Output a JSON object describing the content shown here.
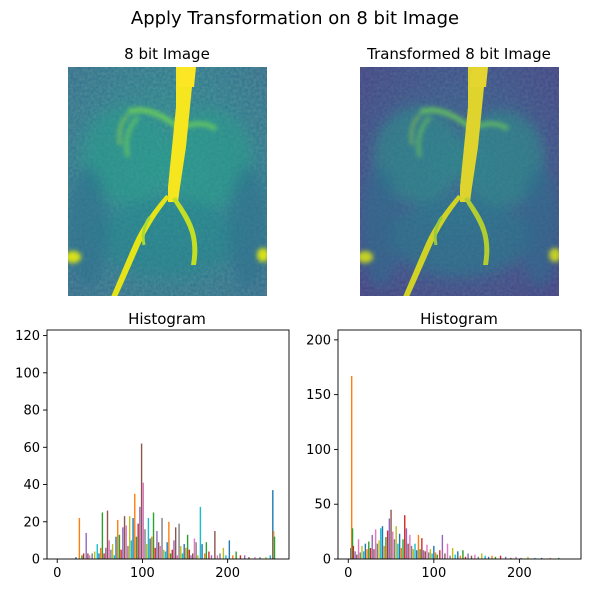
{
  "figure": {
    "title": "Apply Transformation on 8 bit Image"
  },
  "images": [
    {
      "title": "8 bit Image",
      "colormap": "viridis",
      "transformed": false
    },
    {
      "title": "Transformed 8 bit Image",
      "colormap": "viridis",
      "transformed": true
    }
  ],
  "series_colors": [
    "#1f77b4",
    "#ff7f0e",
    "#2ca02c",
    "#d62728",
    "#9467bd",
    "#8c564b",
    "#e377c2",
    "#7f7f7f",
    "#bcbd22",
    "#17becf"
  ],
  "chart_data": [
    {
      "type": "bar",
      "title": "Histogram",
      "xlabel": "",
      "ylabel": "",
      "xlim": [
        -12,
        272
      ],
      "ylim": [
        0,
        123
      ],
      "xticks": [
        0,
        100,
        200
      ],
      "yticks": [
        0,
        20,
        40,
        60,
        80,
        100,
        120
      ],
      "bins": [
        {
          "x": 22,
          "y": 1
        },
        {
          "x": 26,
          "y": 22
        },
        {
          "x": 29,
          "y": 2
        },
        {
          "x": 31,
          "y": 3
        },
        {
          "x": 34,
          "y": 14
        },
        {
          "x": 36,
          "y": 3
        },
        {
          "x": 38,
          "y": 2
        },
        {
          "x": 41,
          "y": 3
        },
        {
          "x": 44,
          "y": 4
        },
        {
          "x": 47,
          "y": 8
        },
        {
          "x": 49,
          "y": 3
        },
        {
          "x": 51,
          "y": 6
        },
        {
          "x": 53,
          "y": 25
        },
        {
          "x": 55,
          "y": 3
        },
        {
          "x": 57,
          "y": 6
        },
        {
          "x": 59,
          "y": 26
        },
        {
          "x": 61,
          "y": 10
        },
        {
          "x": 63,
          "y": 5
        },
        {
          "x": 65,
          "y": 8
        },
        {
          "x": 67,
          "y": 2
        },
        {
          "x": 69,
          "y": 12
        },
        {
          "x": 71,
          "y": 21
        },
        {
          "x": 73,
          "y": 13
        },
        {
          "x": 75,
          "y": 5
        },
        {
          "x": 77,
          "y": 17
        },
        {
          "x": 79,
          "y": 23
        },
        {
          "x": 81,
          "y": 18
        },
        {
          "x": 83,
          "y": 7
        },
        {
          "x": 85,
          "y": 23
        },
        {
          "x": 87,
          "y": 10
        },
        {
          "x": 89,
          "y": 22
        },
        {
          "x": 91,
          "y": 35
        },
        {
          "x": 93,
          "y": 12
        },
        {
          "x": 95,
          "y": 19
        },
        {
          "x": 97,
          "y": 28
        },
        {
          "x": 99,
          "y": 62
        },
        {
          "x": 101,
          "y": 41
        },
        {
          "x": 103,
          "y": 16
        },
        {
          "x": 105,
          "y": 8
        },
        {
          "x": 107,
          "y": 22
        },
        {
          "x": 109,
          "y": 11
        },
        {
          "x": 111,
          "y": 12
        },
        {
          "x": 113,
          "y": 25
        },
        {
          "x": 115,
          "y": 6
        },
        {
          "x": 117,
          "y": 15
        },
        {
          "x": 119,
          "y": 9
        },
        {
          "x": 121,
          "y": 7
        },
        {
          "x": 123,
          "y": 22
        },
        {
          "x": 125,
          "y": 5
        },
        {
          "x": 127,
          "y": 4
        },
        {
          "x": 129,
          "y": 9
        },
        {
          "x": 131,
          "y": 20
        },
        {
          "x": 133,
          "y": 3
        },
        {
          "x": 135,
          "y": 5
        },
        {
          "x": 137,
          "y": 10
        },
        {
          "x": 139,
          "y": 17
        },
        {
          "x": 141,
          "y": 2
        },
        {
          "x": 143,
          "y": 19
        },
        {
          "x": 145,
          "y": 7
        },
        {
          "x": 147,
          "y": 3
        },
        {
          "x": 149,
          "y": 8
        },
        {
          "x": 151,
          "y": 6
        },
        {
          "x": 153,
          "y": 13
        },
        {
          "x": 155,
          "y": 5
        },
        {
          "x": 157,
          "y": 2
        },
        {
          "x": 159,
          "y": 3
        },
        {
          "x": 161,
          "y": 11
        },
        {
          "x": 163,
          "y": 9
        },
        {
          "x": 165,
          "y": 2
        },
        {
          "x": 168,
          "y": 28
        },
        {
          "x": 170,
          "y": 8
        },
        {
          "x": 173,
          "y": 3
        },
        {
          "x": 175,
          "y": 9
        },
        {
          "x": 178,
          "y": 4
        },
        {
          "x": 181,
          "y": 2
        },
        {
          "x": 185,
          "y": 15
        },
        {
          "x": 188,
          "y": 2
        },
        {
          "x": 191,
          "y": 3
        },
        {
          "x": 195,
          "y": 6
        },
        {
          "x": 198,
          "y": 2
        },
        {
          "x": 202,
          "y": 10
        },
        {
          "x": 206,
          "y": 2
        },
        {
          "x": 210,
          "y": 4
        },
        {
          "x": 215,
          "y": 2
        },
        {
          "x": 220,
          "y": 2
        },
        {
          "x": 225,
          "y": 1
        },
        {
          "x": 232,
          "y": 1
        },
        {
          "x": 238,
          "y": 1
        },
        {
          "x": 245,
          "y": 1
        },
        {
          "x": 250,
          "y": 2
        },
        {
          "x": 253,
          "y": 37
        },
        {
          "x": 254,
          "y": 15
        },
        {
          "x": 255,
          "y": 12
        }
      ]
    },
    {
      "type": "bar",
      "title": "Histogram",
      "xlabel": "",
      "ylabel": "",
      "xlim": [
        -12,
        272
      ],
      "ylim": [
        0,
        209
      ],
      "xticks": [
        0,
        100,
        200
      ],
      "yticks": [
        0,
        50,
        100,
        150,
        200
      ],
      "bins": [
        {
          "x": 3,
          "y": 10
        },
        {
          "x": 4,
          "y": 167
        },
        {
          "x": 5,
          "y": 28
        },
        {
          "x": 6,
          "y": 12
        },
        {
          "x": 8,
          "y": 7
        },
        {
          "x": 10,
          "y": 4
        },
        {
          "x": 12,
          "y": 18
        },
        {
          "x": 14,
          "y": 6
        },
        {
          "x": 16,
          "y": 12
        },
        {
          "x": 18,
          "y": 7
        },
        {
          "x": 20,
          "y": 14
        },
        {
          "x": 22,
          "y": 9
        },
        {
          "x": 24,
          "y": 16
        },
        {
          "x": 26,
          "y": 10
        },
        {
          "x": 28,
          "y": 22
        },
        {
          "x": 30,
          "y": 9
        },
        {
          "x": 32,
          "y": 27
        },
        {
          "x": 34,
          "y": 14
        },
        {
          "x": 36,
          "y": 17
        },
        {
          "x": 38,
          "y": 28
        },
        {
          "x": 40,
          "y": 30
        },
        {
          "x": 42,
          "y": 12
        },
        {
          "x": 44,
          "y": 20
        },
        {
          "x": 46,
          "y": 26
        },
        {
          "x": 48,
          "y": 37
        },
        {
          "x": 50,
          "y": 45
        },
        {
          "x": 52,
          "y": 25
        },
        {
          "x": 54,
          "y": 18
        },
        {
          "x": 56,
          "y": 30
        },
        {
          "x": 58,
          "y": 14
        },
        {
          "x": 60,
          "y": 23
        },
        {
          "x": 62,
          "y": 10
        },
        {
          "x": 64,
          "y": 18
        },
        {
          "x": 66,
          "y": 40
        },
        {
          "x": 68,
          "y": 28
        },
        {
          "x": 70,
          "y": 14
        },
        {
          "x": 72,
          "y": 22
        },
        {
          "x": 74,
          "y": 12
        },
        {
          "x": 76,
          "y": 9
        },
        {
          "x": 78,
          "y": 14
        },
        {
          "x": 80,
          "y": 8
        },
        {
          "x": 82,
          "y": 22
        },
        {
          "x": 84,
          "y": 9
        },
        {
          "x": 86,
          "y": 19
        },
        {
          "x": 88,
          "y": 8
        },
        {
          "x": 90,
          "y": 7
        },
        {
          "x": 92,
          "y": 13
        },
        {
          "x": 94,
          "y": 6
        },
        {
          "x": 96,
          "y": 9
        },
        {
          "x": 98,
          "y": 5
        },
        {
          "x": 100,
          "y": 12
        },
        {
          "x": 102,
          "y": 6
        },
        {
          "x": 104,
          "y": 4
        },
        {
          "x": 107,
          "y": 8
        },
        {
          "x": 110,
          "y": 22
        },
        {
          "x": 113,
          "y": 5
        },
        {
          "x": 116,
          "y": 14
        },
        {
          "x": 119,
          "y": 3
        },
        {
          "x": 122,
          "y": 10
        },
        {
          "x": 125,
          "y": 4
        },
        {
          "x": 128,
          "y": 7
        },
        {
          "x": 131,
          "y": 3
        },
        {
          "x": 134,
          "y": 8
        },
        {
          "x": 137,
          "y": 2
        },
        {
          "x": 140,
          "y": 5
        },
        {
          "x": 144,
          "y": 3
        },
        {
          "x": 148,
          "y": 4
        },
        {
          "x": 152,
          "y": 2
        },
        {
          "x": 156,
          "y": 5
        },
        {
          "x": 160,
          "y": 3
        },
        {
          "x": 164,
          "y": 2
        },
        {
          "x": 168,
          "y": 3
        },
        {
          "x": 172,
          "y": 2
        },
        {
          "x": 178,
          "y": 3
        },
        {
          "x": 184,
          "y": 2
        },
        {
          "x": 190,
          "y": 1
        },
        {
          "x": 196,
          "y": 2
        },
        {
          "x": 202,
          "y": 1
        },
        {
          "x": 210,
          "y": 2
        },
        {
          "x": 218,
          "y": 1
        },
        {
          "x": 226,
          "y": 1
        },
        {
          "x": 236,
          "y": 1
        },
        {
          "x": 246,
          "y": 1
        }
      ]
    }
  ]
}
